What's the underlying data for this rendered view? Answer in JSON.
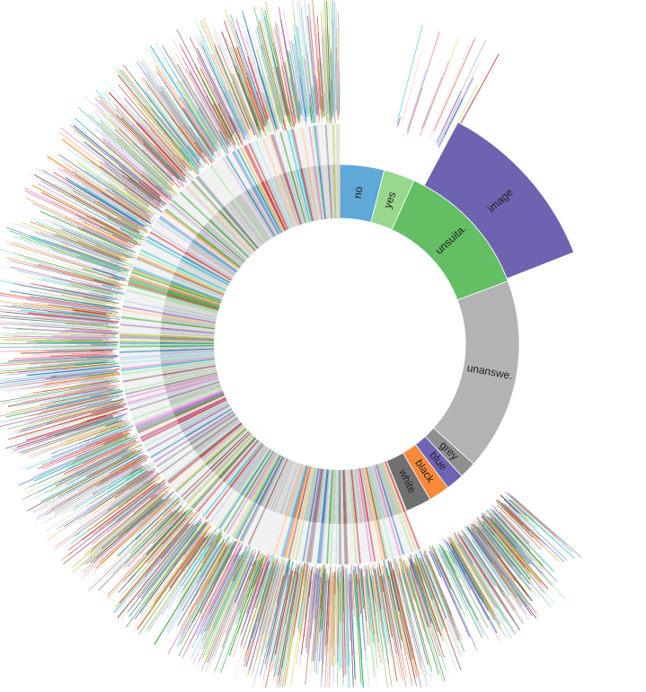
{
  "chart_data": {
    "type": "sunburst",
    "title": "",
    "inner_ring": {
      "segments": [
        {
          "label": "no",
          "value": 4.0,
          "color": "#5fa8d8"
        },
        {
          "label": "yes",
          "value": 2.8,
          "color": "#98d88e"
        },
        {
          "label": "unsuita.",
          "value": 12.5,
          "color": "#64bf64"
        },
        {
          "label": "unanswe.",
          "value": 17.3,
          "color": "#b3b3b3"
        },
        {
          "label": "grey",
          "value": 1.5,
          "color": "#8f8f8f"
        },
        {
          "label": "blue",
          "value": 1.6,
          "color": "#6f64b4"
        },
        {
          "label": "black",
          "value": 1.9,
          "color": "#f98a3c"
        },
        {
          "label": "white",
          "value": 2.3,
          "color": "#707070"
        },
        {
          "label": "",
          "value": 56.1,
          "color": "#cfcfcf",
          "note": "many small unlabeled answers"
        }
      ]
    },
    "second_ring": {
      "segments": [
        {
          "label": "image",
          "parent": "unsuita.",
          "color": "#6e63b0"
        }
      ]
    },
    "outer_rings": {
      "detail": "thousands of thin unlabeled multicolour slices radiating outward"
    },
    "palette": [
      "#1f77b4",
      "#ff7f0e",
      "#2ca02c",
      "#d62728",
      "#9467bd",
      "#8c564b",
      "#e377c2",
      "#7f7f7f",
      "#bcbd22",
      "#17becf",
      "#aec7e8",
      "#98df8a",
      "#c5b0d5",
      "#ffbb78",
      "#9edae5"
    ]
  }
}
